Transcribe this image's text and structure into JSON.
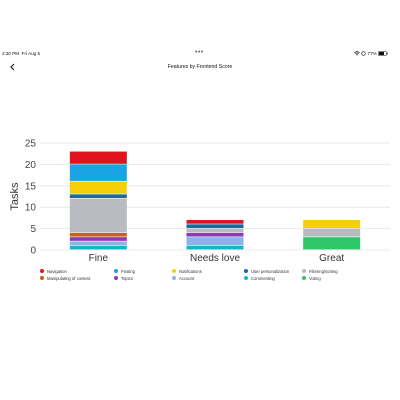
{
  "status": {
    "time": "2:30 PM",
    "date": "Fri Aug 5",
    "dots": "•••",
    "battery": "77%"
  },
  "nav": {
    "title": "Features by Frontend Score",
    "back_icon": "chevron-left-icon"
  },
  "colors": {
    "Navigation": "#e0141e",
    "Posting": "#1aa4e6",
    "Notifications": "#f5d00a",
    "User personalization": "#1a6aa0",
    "Filtering/sorting": "#b8bcc0",
    "Manipulating of content": "#c0651a",
    "Topics": "#8c3ab8",
    "Account": "#8ab4e8",
    "Commenting": "#10b8c8",
    "Voting": "#2ec86a"
  },
  "chart_data": {
    "type": "bar",
    "stacked": true,
    "categories": [
      "Fine",
      "Needs love",
      "Great"
    ],
    "ylabel": "Tasks",
    "xlabel": "",
    "ylim": [
      0,
      25
    ],
    "yticks": [
      0,
      5,
      10,
      15,
      20,
      25
    ],
    "grid": true,
    "legend_position": "bottom",
    "series": [
      {
        "name": "Commenting",
        "values": [
          1,
          1,
          0
        ]
      },
      {
        "name": "Account",
        "values": [
          1,
          2,
          0
        ]
      },
      {
        "name": "Topics",
        "values": [
          1,
          1,
          0
        ]
      },
      {
        "name": "Manipulating of content",
        "values": [
          1,
          0,
          0
        ]
      },
      {
        "name": "Voting",
        "values": [
          0,
          0,
          3
        ]
      },
      {
        "name": "Filtering/sorting",
        "values": [
          8,
          1,
          2
        ]
      },
      {
        "name": "User personalization",
        "values": [
          1,
          1,
          0
        ]
      },
      {
        "name": "Notifications",
        "values": [
          3,
          0,
          2
        ]
      },
      {
        "name": "Posting",
        "values": [
          4,
          0,
          0
        ]
      },
      {
        "name": "Navigation",
        "values": [
          3,
          1,
          0
        ]
      }
    ],
    "legend_order": [
      "Navigation",
      "Posting",
      "Notifications",
      "User personalization",
      "Filtering/sorting",
      "Manipulating of content",
      "Topics",
      "Account",
      "Commenting",
      "Voting"
    ]
  }
}
